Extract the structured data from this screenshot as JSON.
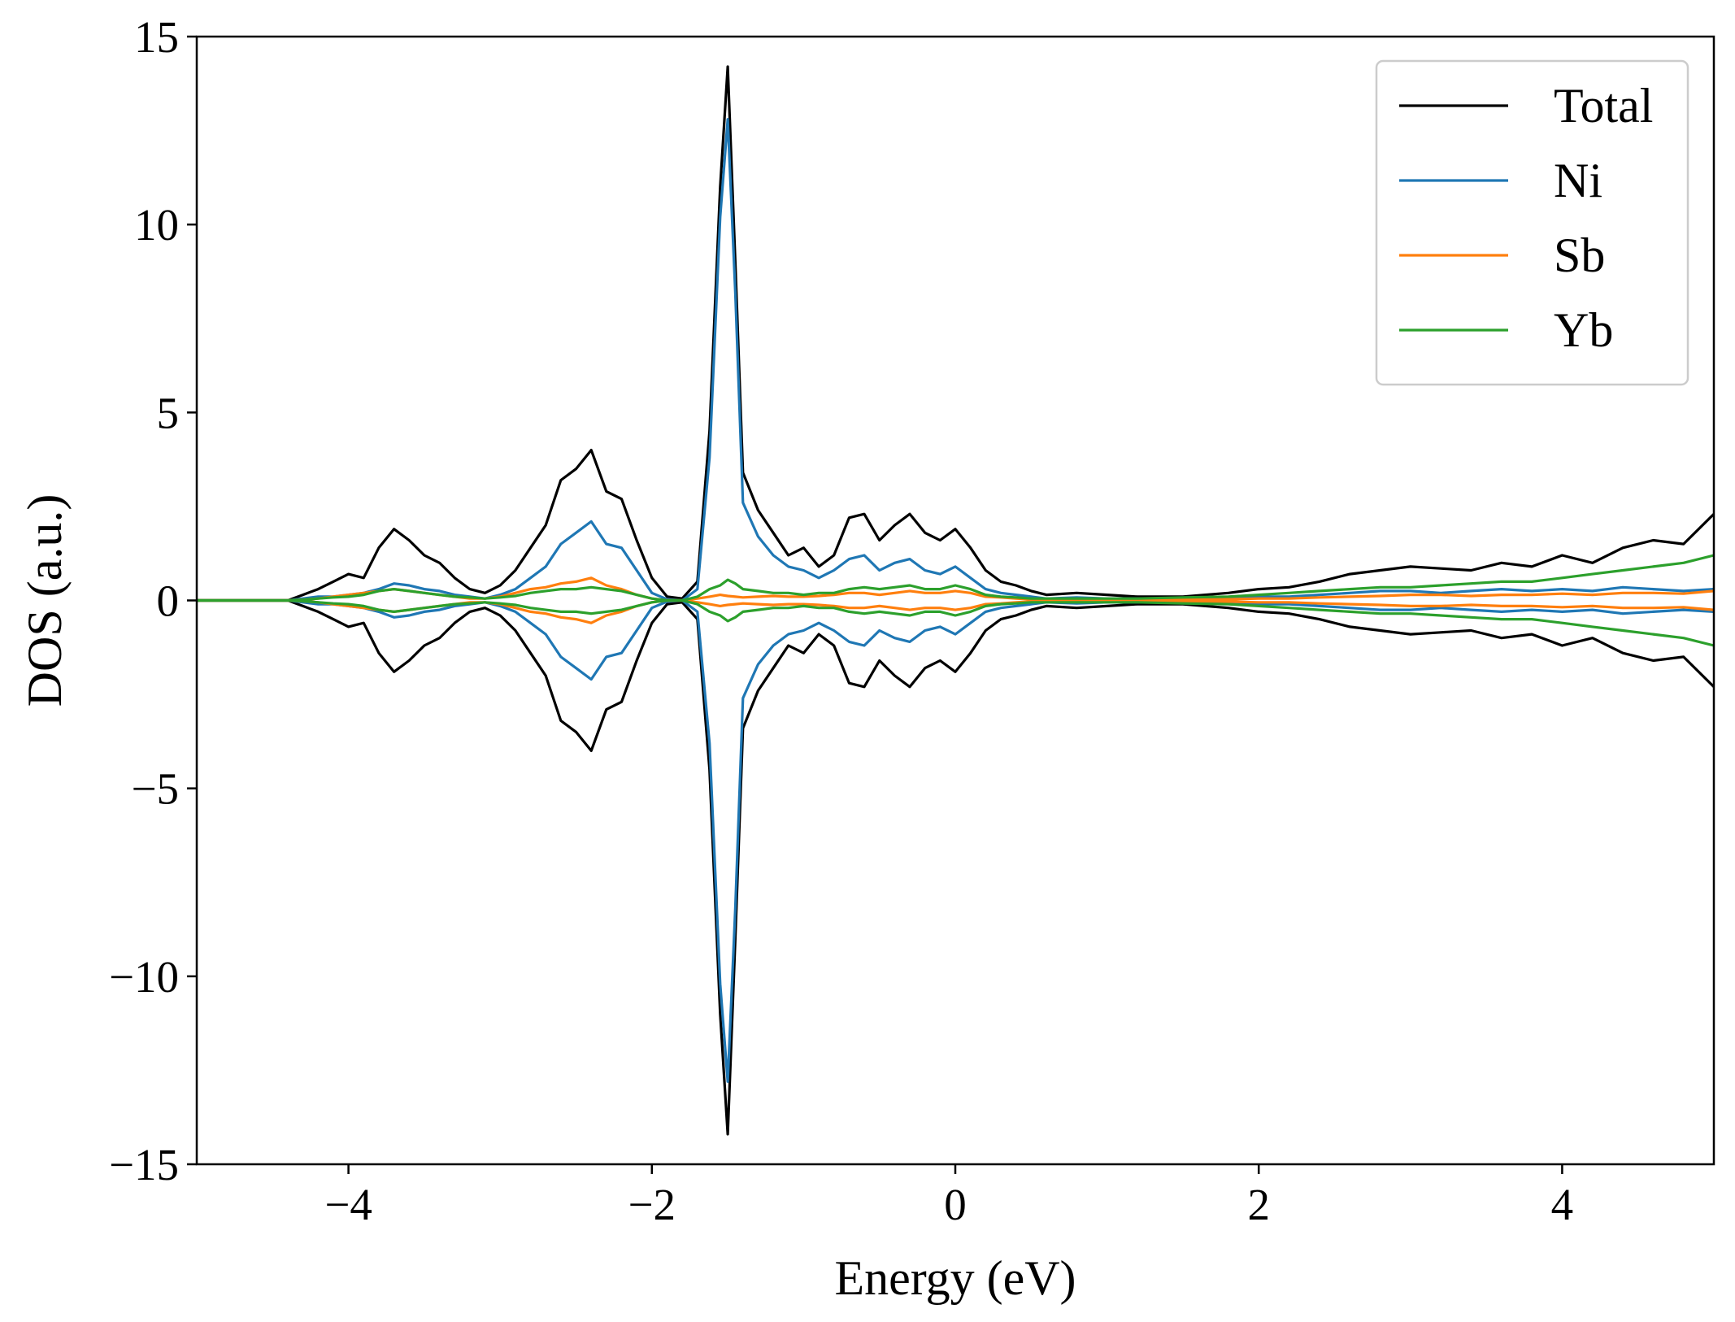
{
  "chart_data": {
    "type": "line",
    "title": "",
    "xlabel": "Energy (eV)",
    "ylabel": "DOS (a.u.)",
    "xlim": [
      -5,
      5
    ],
    "ylim": [
      -15,
      15
    ],
    "xticks": [
      -4,
      -2,
      0,
      2,
      4
    ],
    "xtick_labels": [
      "−4",
      "−2",
      "0",
      "2",
      "4"
    ],
    "yticks": [
      -15,
      -10,
      -5,
      0,
      5,
      10,
      15
    ],
    "ytick_labels": [
      "−15",
      "−10",
      "−5",
      "0",
      "5",
      "10",
      "15"
    ],
    "grid": false,
    "legend_position": "top-right",
    "x": [
      -5.0,
      -4.4,
      -4.3,
      -4.2,
      -4.1,
      -4.0,
      -3.9,
      -3.8,
      -3.7,
      -3.6,
      -3.5,
      -3.4,
      -3.3,
      -3.2,
      -3.1,
      -3.0,
      -2.9,
      -2.8,
      -2.7,
      -2.6,
      -2.5,
      -2.4,
      -2.3,
      -2.2,
      -2.1,
      -2.0,
      -1.9,
      -1.8,
      -1.7,
      -1.62,
      -1.55,
      -1.5,
      -1.45,
      -1.4,
      -1.3,
      -1.2,
      -1.1,
      -1.0,
      -0.9,
      -0.8,
      -0.7,
      -0.6,
      -0.5,
      -0.4,
      -0.3,
      -0.2,
      -0.1,
      0.0,
      0.1,
      0.2,
      0.3,
      0.4,
      0.5,
      0.6,
      0.8,
      1.0,
      1.2,
      1.5,
      1.8,
      2.0,
      2.2,
      2.4,
      2.6,
      2.8,
      3.0,
      3.2,
      3.4,
      3.6,
      3.8,
      4.0,
      4.2,
      4.4,
      4.6,
      4.8,
      5.0
    ],
    "series": [
      {
        "name": "Total",
        "color": "#000000",
        "values": [
          0.0,
          0.0,
          0.15,
          0.3,
          0.5,
          0.7,
          0.6,
          1.4,
          1.9,
          1.6,
          1.2,
          1.0,
          0.6,
          0.3,
          0.2,
          0.4,
          0.8,
          1.4,
          2.0,
          3.2,
          3.5,
          4.0,
          2.9,
          2.7,
          1.6,
          0.6,
          0.1,
          0.05,
          0.5,
          4.5,
          11.0,
          14.2,
          9.0,
          3.4,
          2.4,
          1.8,
          1.2,
          1.4,
          0.9,
          1.2,
          2.2,
          2.3,
          1.6,
          2.0,
          2.3,
          1.8,
          1.6,
          1.9,
          1.4,
          0.8,
          0.5,
          0.4,
          0.25,
          0.15,
          0.2,
          0.15,
          0.1,
          0.1,
          0.2,
          0.3,
          0.35,
          0.5,
          0.7,
          0.8,
          0.9,
          0.85,
          0.8,
          1.0,
          0.9,
          1.2,
          1.0,
          1.4,
          1.6,
          1.5,
          2.3
        ]
      },
      {
        "name": "Ni",
        "color": "#1f77b4",
        "values": [
          0.0,
          0.0,
          0.05,
          0.1,
          0.1,
          0.15,
          0.2,
          0.3,
          0.45,
          0.4,
          0.3,
          0.25,
          0.15,
          0.1,
          0.05,
          0.15,
          0.3,
          0.6,
          0.9,
          1.5,
          1.8,
          2.1,
          1.5,
          1.4,
          0.8,
          0.2,
          0.03,
          0.0,
          0.3,
          3.8,
          10.2,
          12.8,
          8.2,
          2.6,
          1.7,
          1.2,
          0.9,
          0.8,
          0.6,
          0.8,
          1.1,
          1.2,
          0.8,
          1.0,
          1.1,
          0.8,
          0.7,
          0.9,
          0.6,
          0.3,
          0.2,
          0.15,
          0.1,
          0.05,
          0.08,
          0.05,
          0.05,
          0.05,
          0.08,
          0.1,
          0.1,
          0.15,
          0.2,
          0.25,
          0.25,
          0.2,
          0.25,
          0.3,
          0.25,
          0.3,
          0.25,
          0.35,
          0.3,
          0.25,
          0.3
        ]
      },
      {
        "name": "Sb",
        "color": "#ff7f0e",
        "values": [
          0.0,
          0.0,
          0.02,
          0.05,
          0.1,
          0.15,
          0.2,
          0.25,
          0.3,
          0.25,
          0.2,
          0.15,
          0.1,
          0.05,
          0.05,
          0.1,
          0.2,
          0.3,
          0.35,
          0.45,
          0.5,
          0.6,
          0.4,
          0.3,
          0.15,
          0.05,
          0.0,
          0.0,
          0.05,
          0.1,
          0.15,
          0.12,
          0.1,
          0.08,
          0.1,
          0.12,
          0.1,
          0.1,
          0.12,
          0.15,
          0.2,
          0.2,
          0.15,
          0.2,
          0.25,
          0.2,
          0.2,
          0.25,
          0.2,
          0.1,
          0.08,
          0.05,
          0.03,
          0.02,
          0.02,
          0.02,
          0.02,
          0.02,
          0.03,
          0.05,
          0.05,
          0.08,
          0.1,
          0.12,
          0.15,
          0.15,
          0.12,
          0.15,
          0.15,
          0.18,
          0.15,
          0.2,
          0.2,
          0.18,
          0.25
        ]
      },
      {
        "name": "Yb",
        "color": "#2ca02c",
        "values": [
          0.0,
          0.0,
          0.02,
          0.05,
          0.08,
          0.1,
          0.15,
          0.25,
          0.3,
          0.25,
          0.2,
          0.15,
          0.1,
          0.08,
          0.05,
          0.08,
          0.12,
          0.2,
          0.25,
          0.3,
          0.3,
          0.35,
          0.3,
          0.25,
          0.15,
          0.05,
          0.0,
          0.0,
          0.1,
          0.3,
          0.4,
          0.55,
          0.45,
          0.3,
          0.25,
          0.2,
          0.2,
          0.15,
          0.2,
          0.2,
          0.3,
          0.35,
          0.3,
          0.35,
          0.4,
          0.3,
          0.3,
          0.4,
          0.3,
          0.15,
          0.1,
          0.08,
          0.05,
          0.05,
          0.05,
          0.05,
          0.05,
          0.08,
          0.1,
          0.15,
          0.2,
          0.25,
          0.3,
          0.35,
          0.35,
          0.4,
          0.45,
          0.5,
          0.5,
          0.6,
          0.7,
          0.8,
          0.9,
          1.0,
          1.2
        ]
      }
    ],
    "symmetry": "mirrored spin-down channel (negative values of each series)"
  }
}
